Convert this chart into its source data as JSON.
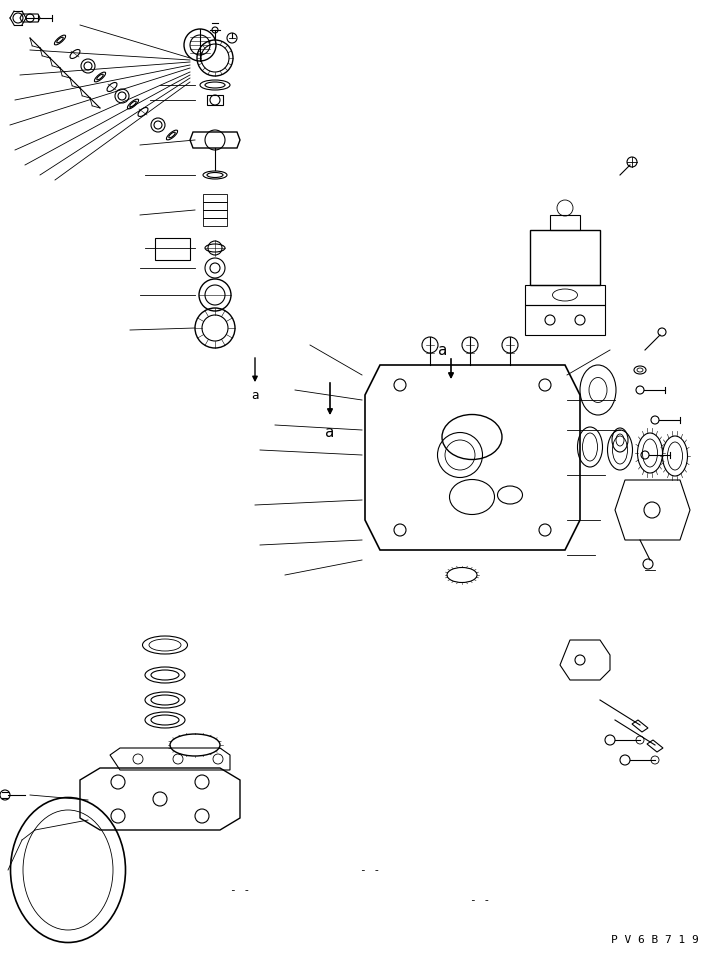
{
  "bg_color": "#ffffff",
  "line_color": "#000000",
  "fig_width": 7.27,
  "fig_height": 9.58,
  "dpi": 100,
  "watermark": "P V 6 B 7 1 9",
  "label_a1": "a",
  "label_a2": "a"
}
